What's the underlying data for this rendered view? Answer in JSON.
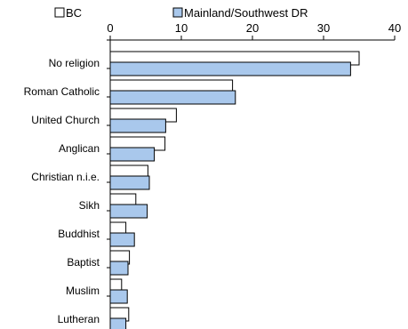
{
  "chart_data": {
    "type": "bar",
    "orientation": "horizontal",
    "categories": [
      "No religion",
      "Roman Catholic",
      "United Church",
      "Anglican",
      "Christian n.i.e.",
      "Sikh",
      "Buddhist",
      "Baptist",
      "Muslim",
      "Lutheran"
    ],
    "series": [
      {
        "name": "BC",
        "color": "#ffffff",
        "values": [
          35.0,
          17.2,
          9.3,
          7.7,
          5.3,
          3.6,
          2.2,
          2.7,
          1.6,
          2.6
        ]
      },
      {
        "name": "Mainland/Southwest DR",
        "color": "#a9c8ec",
        "values": [
          33.8,
          17.6,
          7.8,
          6.2,
          5.5,
          5.2,
          3.4,
          2.5,
          2.4,
          2.2
        ]
      }
    ],
    "xlim": [
      0,
      40
    ],
    "xticks": [
      0,
      10,
      20,
      30,
      40
    ],
    "xtick_labels": [
      "0",
      "10",
      "20",
      "30",
      "40"
    ],
    "xaxis_position": "top",
    "grid": false,
    "legend": {
      "position": "top",
      "entries": [
        "BC",
        "Mainland/Southwest DR"
      ]
    }
  }
}
